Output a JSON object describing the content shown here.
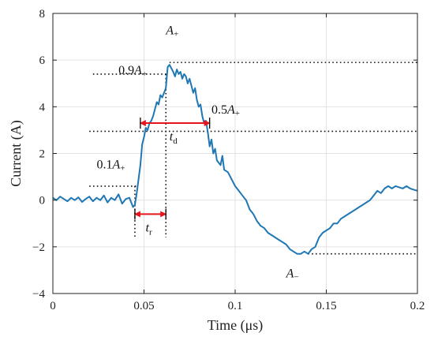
{
  "chart_data": {
    "type": "line",
    "title": "",
    "xlabel": "Time  (μs)",
    "ylabel": "Current (A)",
    "xlim": [
      0,
      0.2
    ],
    "ylim": [
      -4,
      8
    ],
    "x_ticks": [
      "0",
      "0.05",
      "0.1",
      "0.15",
      "0.2"
    ],
    "y_ticks": [
      "-4",
      "-2",
      "0",
      "2",
      "4",
      "6",
      "8"
    ],
    "grid": true,
    "line_color": "#1f77b4",
    "accent_color": "#e8141c",
    "series": [
      {
        "points": [
          [
            0.0,
            0.1
          ],
          [
            0.002,
            0.0
          ],
          [
            0.004,
            0.15
          ],
          [
            0.006,
            0.05
          ],
          [
            0.008,
            -0.05
          ],
          [
            0.01,
            0.1
          ],
          [
            0.012,
            0.0
          ],
          [
            0.014,
            0.12
          ],
          [
            0.016,
            -0.08
          ],
          [
            0.018,
            0.05
          ],
          [
            0.02,
            0.15
          ],
          [
            0.022,
            -0.05
          ],
          [
            0.024,
            0.1
          ],
          [
            0.026,
            0.0
          ],
          [
            0.028,
            0.2
          ],
          [
            0.03,
            -0.1
          ],
          [
            0.032,
            0.1
          ],
          [
            0.034,
            0.0
          ],
          [
            0.036,
            0.25
          ],
          [
            0.038,
            -0.15
          ],
          [
            0.04,
            0.05
          ],
          [
            0.042,
            0.1
          ],
          [
            0.044,
            -0.3
          ],
          [
            0.045,
            -0.2
          ],
          [
            0.046,
            0.3
          ],
          [
            0.047,
            0.9
          ],
          [
            0.048,
            1.5
          ],
          [
            0.049,
            2.4
          ],
          [
            0.05,
            2.7
          ],
          [
            0.051,
            3.1
          ],
          [
            0.052,
            3.0
          ],
          [
            0.053,
            3.3
          ],
          [
            0.054,
            3.4
          ],
          [
            0.055,
            3.6
          ],
          [
            0.056,
            3.9
          ],
          [
            0.057,
            4.2
          ],
          [
            0.058,
            4.1
          ],
          [
            0.059,
            4.5
          ],
          [
            0.06,
            4.4
          ],
          [
            0.061,
            4.6
          ],
          [
            0.062,
            4.8
          ],
          [
            0.063,
            5.7
          ],
          [
            0.064,
            5.8
          ],
          [
            0.066,
            5.5
          ],
          [
            0.067,
            5.3
          ],
          [
            0.068,
            5.6
          ],
          [
            0.069,
            5.4
          ],
          [
            0.07,
            5.5
          ],
          [
            0.071,
            5.2
          ],
          [
            0.072,
            5.4
          ],
          [
            0.073,
            5.3
          ],
          [
            0.074,
            5.0
          ],
          [
            0.075,
            5.2
          ],
          [
            0.076,
            4.9
          ],
          [
            0.077,
            4.6
          ],
          [
            0.078,
            4.8
          ],
          [
            0.079,
            4.3
          ],
          [
            0.08,
            4.0
          ],
          [
            0.081,
            4.1
          ],
          [
            0.082,
            3.6
          ],
          [
            0.083,
            3.3
          ],
          [
            0.084,
            3.4
          ],
          [
            0.085,
            2.9
          ],
          [
            0.086,
            2.3
          ],
          [
            0.087,
            2.6
          ],
          [
            0.088,
            2.0
          ],
          [
            0.089,
            2.2
          ],
          [
            0.09,
            1.7
          ],
          [
            0.092,
            1.5
          ],
          [
            0.093,
            1.9
          ],
          [
            0.094,
            1.3
          ],
          [
            0.096,
            1.2
          ],
          [
            0.098,
            0.9
          ],
          [
            0.1,
            0.6
          ],
          [
            0.102,
            0.4
          ],
          [
            0.104,
            0.2
          ],
          [
            0.106,
            0.0
          ],
          [
            0.108,
            -0.4
          ],
          [
            0.11,
            -0.6
          ],
          [
            0.112,
            -0.9
          ],
          [
            0.114,
            -1.1
          ],
          [
            0.116,
            -1.2
          ],
          [
            0.118,
            -1.4
          ],
          [
            0.12,
            -1.5
          ],
          [
            0.122,
            -1.6
          ],
          [
            0.124,
            -1.7
          ],
          [
            0.126,
            -1.8
          ],
          [
            0.128,
            -1.9
          ],
          [
            0.13,
            -2.1
          ],
          [
            0.132,
            -2.2
          ],
          [
            0.134,
            -2.3
          ],
          [
            0.136,
            -2.3
          ],
          [
            0.138,
            -2.2
          ],
          [
            0.14,
            -2.3
          ],
          [
            0.142,
            -2.1
          ],
          [
            0.144,
            -2.0
          ],
          [
            0.146,
            -1.6
          ],
          [
            0.148,
            -1.4
          ],
          [
            0.15,
            -1.3
          ],
          [
            0.152,
            -1.2
          ],
          [
            0.154,
            -1.0
          ],
          [
            0.156,
            -1.0
          ],
          [
            0.158,
            -0.8
          ],
          [
            0.16,
            -0.7
          ],
          [
            0.162,
            -0.6
          ],
          [
            0.164,
            -0.5
          ],
          [
            0.166,
            -0.4
          ],
          [
            0.168,
            -0.3
          ],
          [
            0.17,
            -0.2
          ],
          [
            0.172,
            -0.1
          ],
          [
            0.174,
            0.0
          ],
          [
            0.176,
            0.2
          ],
          [
            0.178,
            0.4
          ],
          [
            0.18,
            0.3
          ],
          [
            0.182,
            0.5
          ],
          [
            0.184,
            0.6
          ],
          [
            0.186,
            0.5
          ],
          [
            0.188,
            0.6
          ],
          [
            0.19,
            0.55
          ],
          [
            0.192,
            0.5
          ],
          [
            0.194,
            0.6
          ],
          [
            0.196,
            0.5
          ],
          [
            0.198,
            0.45
          ],
          [
            0.2,
            0.4
          ]
        ]
      }
    ],
    "reference_lines": [
      {
        "y": 5.9,
        "x_from": 0.064,
        "x_to": 0.2
      },
      {
        "y": 5.4,
        "x_from": 0.022,
        "x_to": 0.063
      },
      {
        "y": 2.95,
        "x_from": 0.02,
        "x_to": 0.2
      },
      {
        "y": 0.6,
        "x_from": 0.02,
        "x_to": 0.046
      },
      {
        "y": -2.3,
        "x_from": 0.14,
        "x_to": 0.2
      }
    ],
    "vertical_markers": [
      {
        "x": 0.045,
        "y_from": -1.6,
        "y_to": 0.6
      },
      {
        "x": 0.062,
        "y_from": -1.6,
        "y_to": 5.4
      }
    ],
    "arrows": [
      {
        "label": "t",
        "sub": "r",
        "x1": 0.045,
        "x2": 0.062,
        "y": -0.6
      },
      {
        "label": "t",
        "sub": "d",
        "x1": 0.048,
        "x2": 0.086,
        "y": 3.3
      }
    ],
    "annotations": [
      {
        "main": "A",
        "sub": "+",
        "x": 0.062,
        "y": 7.1,
        "italic": true
      },
      {
        "main": "0.9A",
        "sub": "+",
        "x": 0.036,
        "y": 5.4,
        "italic": true
      },
      {
        "main": "0.5A",
        "sub": "+",
        "x": 0.087,
        "y": 3.7,
        "italic": true
      },
      {
        "main": "0.1A",
        "sub": "+",
        "x": 0.024,
        "y": 1.35,
        "italic": true
      },
      {
        "main": "A",
        "sub": "−",
        "x": 0.128,
        "y": -3.3,
        "italic": true
      }
    ]
  }
}
